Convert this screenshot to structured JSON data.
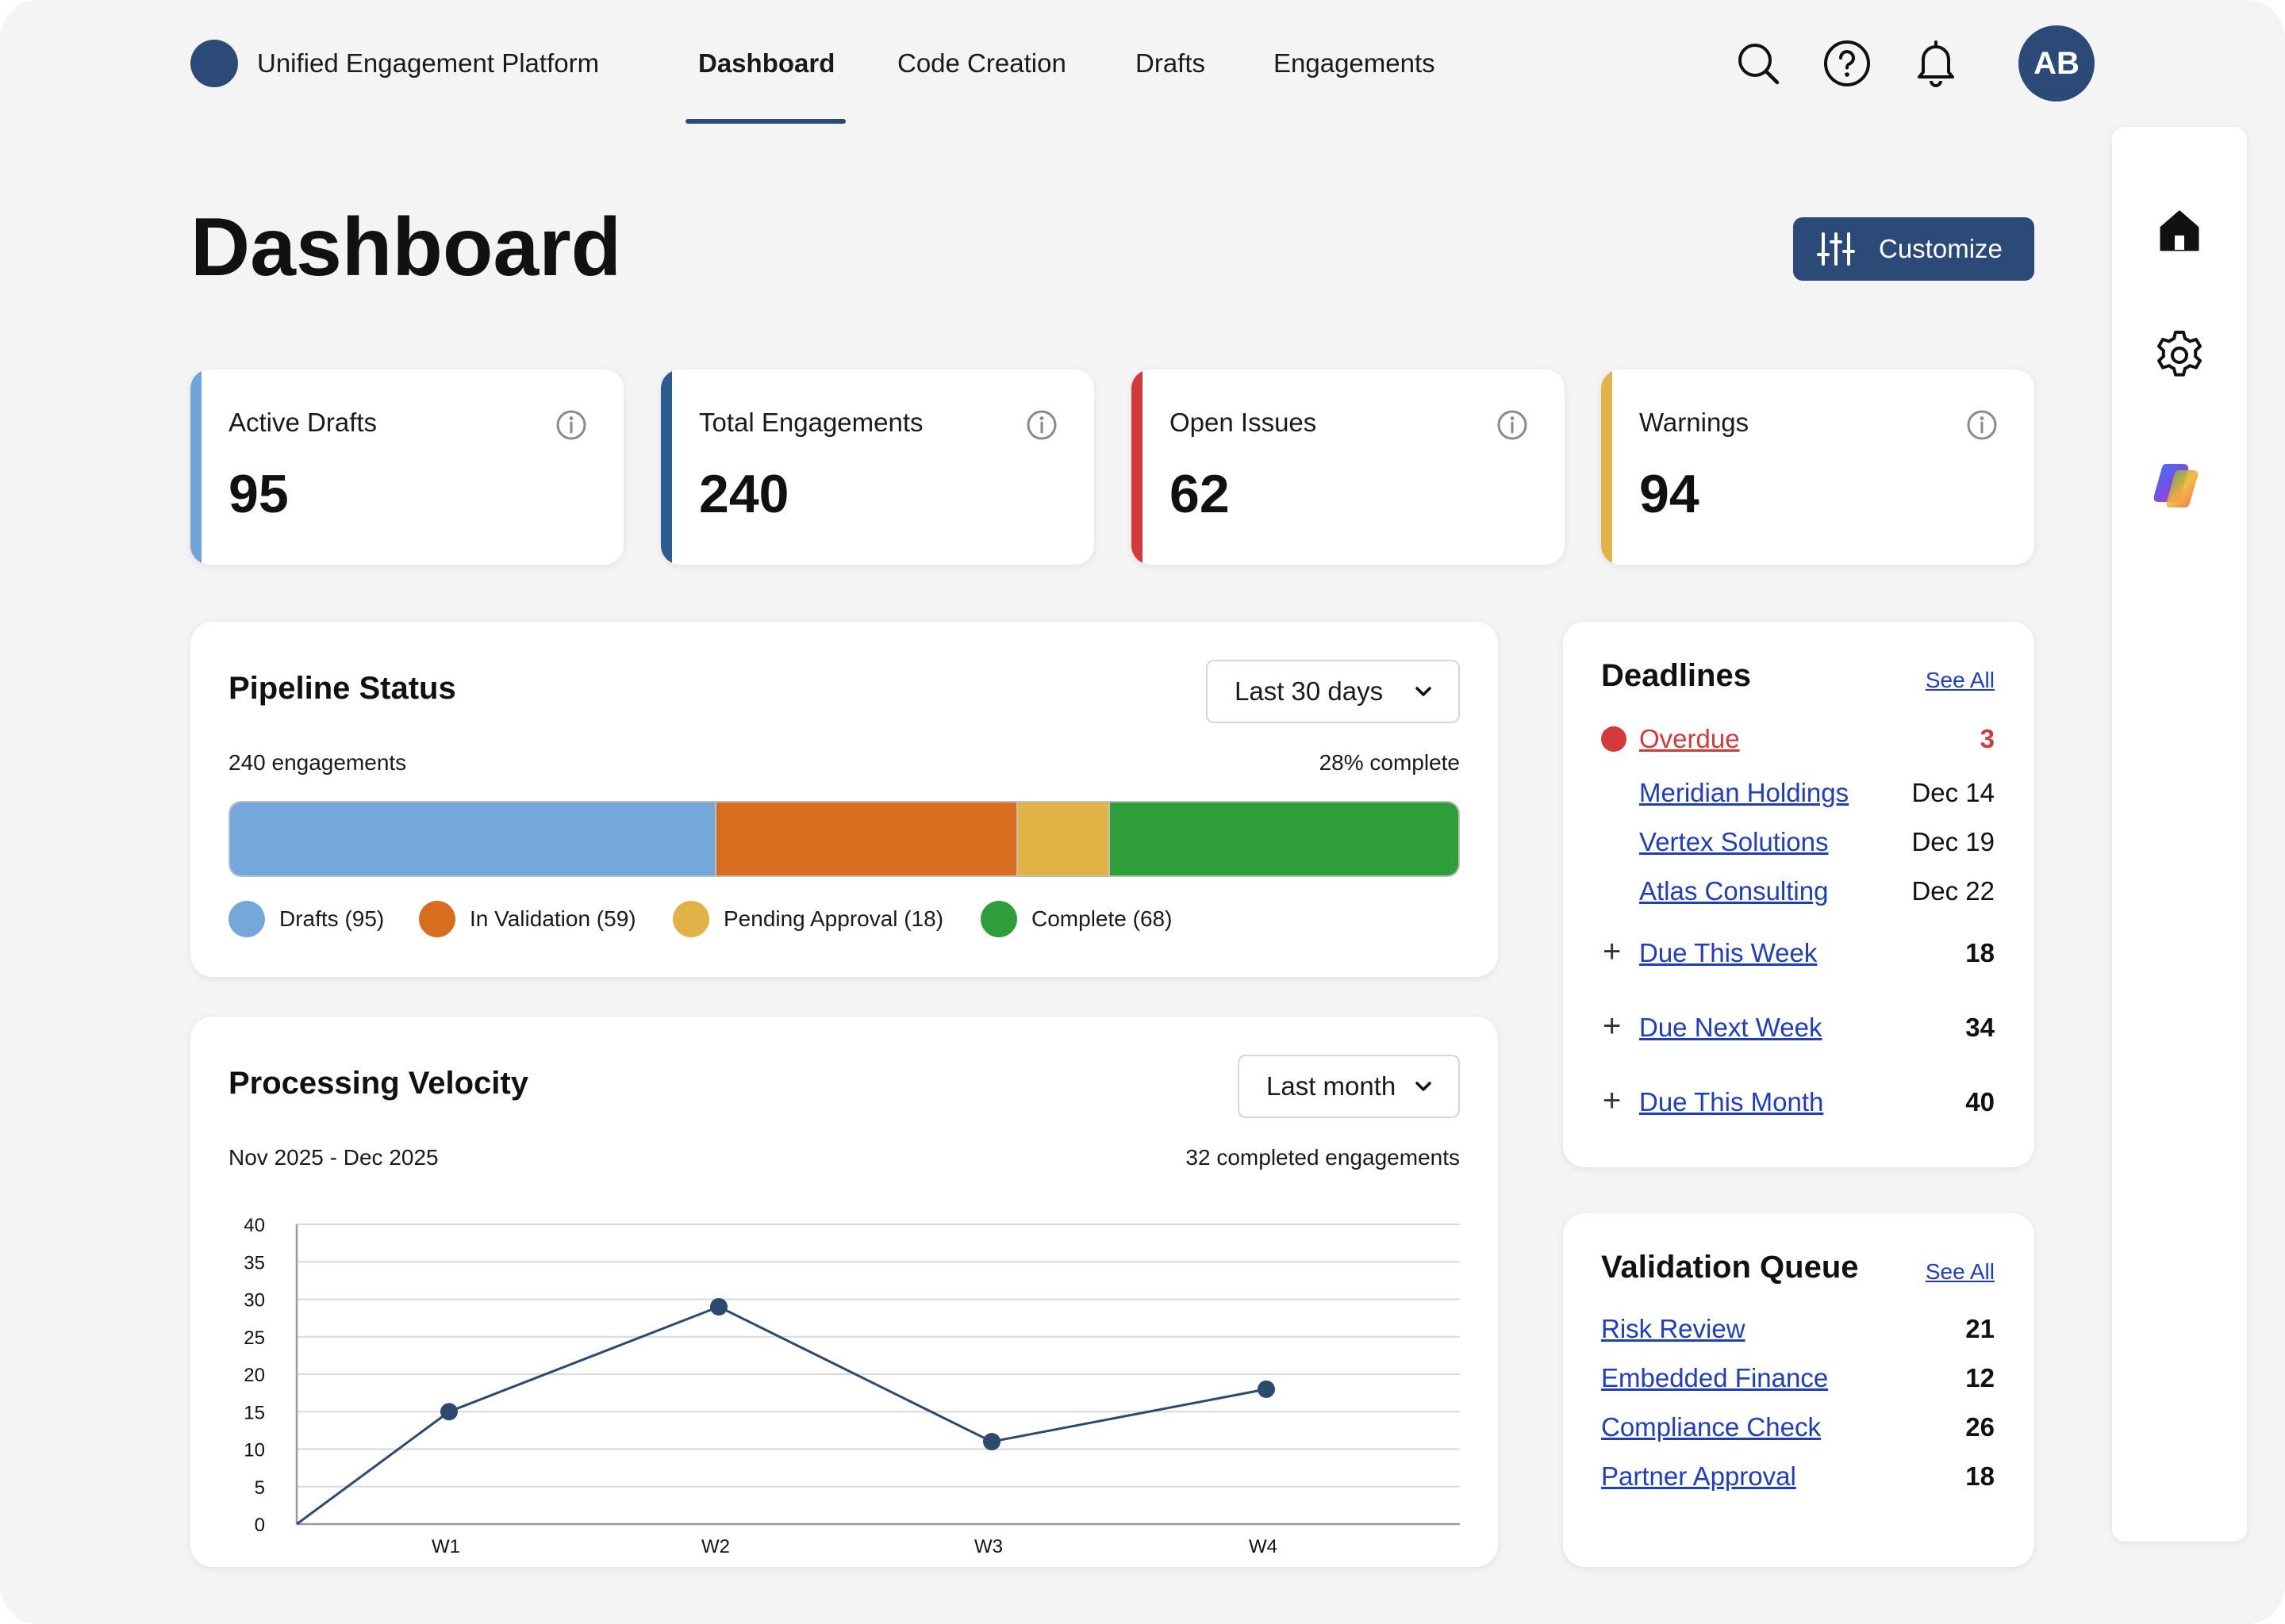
{
  "app": {
    "title": "Unified Engagement Platform",
    "avatar_initials": "AB"
  },
  "nav": {
    "tabs": [
      {
        "label": "Dashboard",
        "active": true
      },
      {
        "label": "Code Creation",
        "active": false
      },
      {
        "label": "Drafts",
        "active": false
      },
      {
        "label": "Engagements",
        "active": false
      }
    ]
  },
  "header_icons": [
    "search-icon",
    "help-icon",
    "bell-icon"
  ],
  "rail_icons": [
    "home-icon",
    "gear-icon",
    "copilot-icon"
  ],
  "page": {
    "title": "Dashboard",
    "customize_label": "Customize"
  },
  "stats": [
    {
      "label": "Active Drafts",
      "value": "95",
      "accent": "#6fa4d8"
    },
    {
      "label": "Total Engagements",
      "value": "240",
      "accent": "#2c5a92"
    },
    {
      "label": "Open Issues",
      "value": "62",
      "accent": "#d43a3a"
    },
    {
      "label": "Warnings",
      "value": "94",
      "accent": "#e0b448"
    }
  ],
  "pipeline": {
    "title": "Pipeline Status",
    "period": "Last 30 days",
    "summary_left": "240 engagements",
    "summary_right": "28% complete",
    "segments": [
      {
        "label": "Drafts (95)",
        "value": 95,
        "color": "#74a8db"
      },
      {
        "label": "In Validation (59)",
        "value": 59,
        "color": "#d86c1f"
      },
      {
        "label": "Pending Approval (18)",
        "value": 18,
        "color": "#e1b347"
      },
      {
        "label": "Complete (68)",
        "value": 68,
        "color": "#2e9e3b"
      }
    ]
  },
  "velocity": {
    "title": "Processing Velocity",
    "period": "Last month",
    "range_label": "Nov 2025 - Dec 2025",
    "summary": "32 completed engagements"
  },
  "chart_data": {
    "type": "line",
    "categories": [
      "W1",
      "W2",
      "W3",
      "W4"
    ],
    "series": [
      {
        "values": [
          15,
          29,
          11,
          18
        ],
        "color": "#2c4a6e"
      }
    ],
    "start_value": 0,
    "ylim": [
      0,
      40
    ],
    "yticks": [
      0,
      5,
      10,
      15,
      20,
      25,
      30,
      35,
      40
    ],
    "grid": true,
    "xlabel": "",
    "ylabel": ""
  },
  "deadlines": {
    "title": "Deadlines",
    "see_all": "See All",
    "overdue": {
      "label": "Overdue",
      "count": "3"
    },
    "items": [
      {
        "name": "Meridian Holdings",
        "date": "Dec 14"
      },
      {
        "name": "Vertex Solutions",
        "date": "Dec 19"
      },
      {
        "name": "Atlas Consulting",
        "date": "Dec 22"
      }
    ],
    "groups": [
      {
        "label": "Due This Week",
        "count": "18"
      },
      {
        "label": "Due Next Week",
        "count": "34"
      },
      {
        "label": "Due This Month",
        "count": "40"
      }
    ]
  },
  "validation_queue": {
    "title": "Validation Queue",
    "see_all": "See All",
    "items": [
      {
        "name": "Risk Review",
        "count": "21"
      },
      {
        "name": "Embedded Finance",
        "count": "12"
      },
      {
        "name": "Compliance Check",
        "count": "26"
      },
      {
        "name": "Partner Approval",
        "count": "18"
      }
    ]
  }
}
